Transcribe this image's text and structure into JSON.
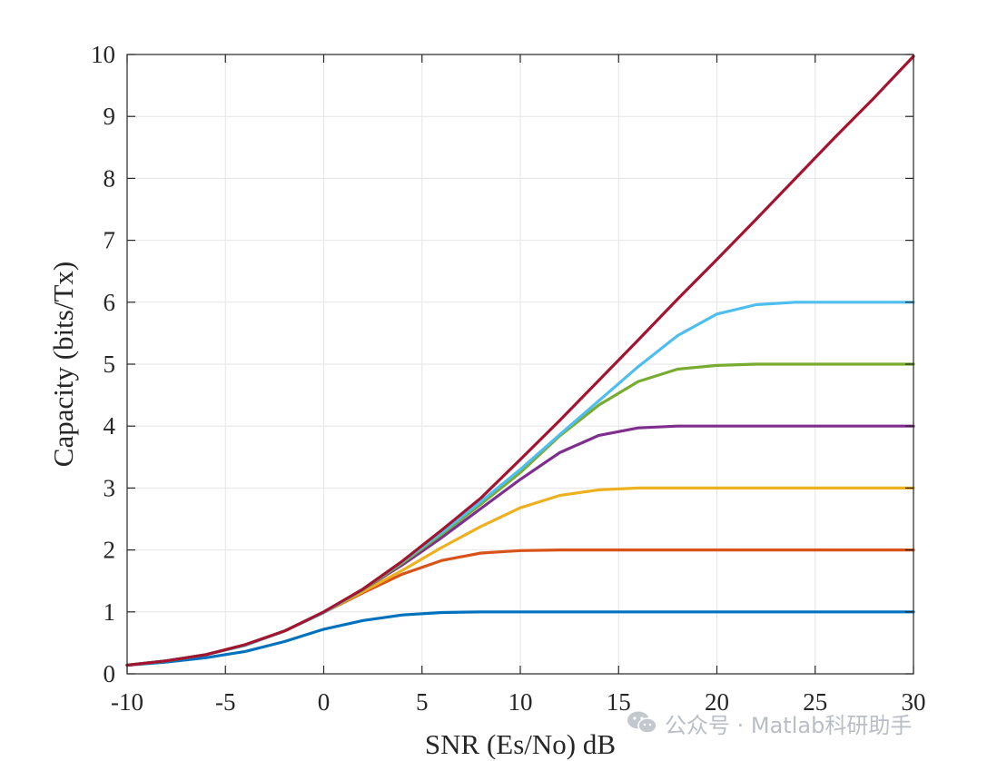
{
  "chart_data": {
    "type": "line",
    "title": "",
    "xlabel": "SNR (Es/No) dB",
    "ylabel": "Capacity (bits/Tx)",
    "xlim": [
      -10,
      30
    ],
    "ylim": [
      0,
      10
    ],
    "xticks": [
      "-10",
      "-5",
      "0",
      "5",
      "10",
      "15",
      "20",
      "25",
      "30"
    ],
    "yticks": [
      "0",
      "1",
      "2",
      "3",
      "4",
      "5",
      "6",
      "7",
      "8",
      "9",
      "10"
    ],
    "grid": true,
    "x": [
      -10,
      -8,
      -6,
      -4,
      -2,
      0,
      2,
      4,
      6,
      8,
      10,
      12,
      14,
      16,
      18,
      20,
      22,
      24,
      26,
      28,
      30
    ],
    "series": [
      {
        "color": "#0072BD",
        "values": [
          0.14,
          0.19,
          0.26,
          0.36,
          0.52,
          0.72,
          0.86,
          0.95,
          0.99,
          1.0,
          1.0,
          1.0,
          1.0,
          1.0,
          1.0,
          1.0,
          1.0,
          1.0,
          1.0,
          1.0,
          1.0
        ]
      },
      {
        "color": "#D95319",
        "values": [
          0.14,
          0.21,
          0.31,
          0.46,
          0.69,
          0.99,
          1.31,
          1.61,
          1.83,
          1.95,
          1.99,
          2.0,
          2.0,
          2.0,
          2.0,
          2.0,
          2.0,
          2.0,
          2.0,
          2.0,
          2.0
        ]
      },
      {
        "color": "#EDB120",
        "values": [
          0.14,
          0.21,
          0.31,
          0.46,
          0.69,
          0.99,
          1.33,
          1.67,
          2.04,
          2.38,
          2.68,
          2.88,
          2.97,
          3.0,
          3.0,
          3.0,
          3.0,
          3.0,
          3.0,
          3.0,
          3.0
        ]
      },
      {
        "color": "#7E2F8E",
        "values": [
          0.14,
          0.21,
          0.31,
          0.46,
          0.69,
          0.99,
          1.36,
          1.76,
          2.2,
          2.67,
          3.14,
          3.57,
          3.85,
          3.97,
          4.0,
          4.0,
          4.0,
          4.0,
          4.0,
          4.0,
          4.0
        ]
      },
      {
        "color": "#77AC30",
        "values": [
          0.14,
          0.21,
          0.31,
          0.46,
          0.69,
          0.99,
          1.36,
          1.79,
          2.25,
          2.74,
          3.25,
          3.84,
          4.34,
          4.72,
          4.92,
          4.98,
          5.0,
          5.0,
          5.0,
          5.0,
          5.0
        ]
      },
      {
        "color": "#4DBEEE",
        "values": [
          0.14,
          0.21,
          0.31,
          0.46,
          0.69,
          0.99,
          1.37,
          1.81,
          2.28,
          2.78,
          3.3,
          3.86,
          4.41,
          4.96,
          5.46,
          5.81,
          5.96,
          6.0,
          6.0,
          6.0,
          6.0
        ]
      },
      {
        "color": "#A2142F",
        "values": [
          0.14,
          0.21,
          0.31,
          0.47,
          0.69,
          1.0,
          1.37,
          1.82,
          2.32,
          2.84,
          3.46,
          4.09,
          4.74,
          5.39,
          6.05,
          6.69,
          7.34,
          8.0,
          8.66,
          9.3,
          9.97
        ]
      }
    ]
  },
  "watermark": {
    "text": "公众号 · Matlab科研助手",
    "icon": "wechat-icon",
    "color": "#b9bec6"
  }
}
